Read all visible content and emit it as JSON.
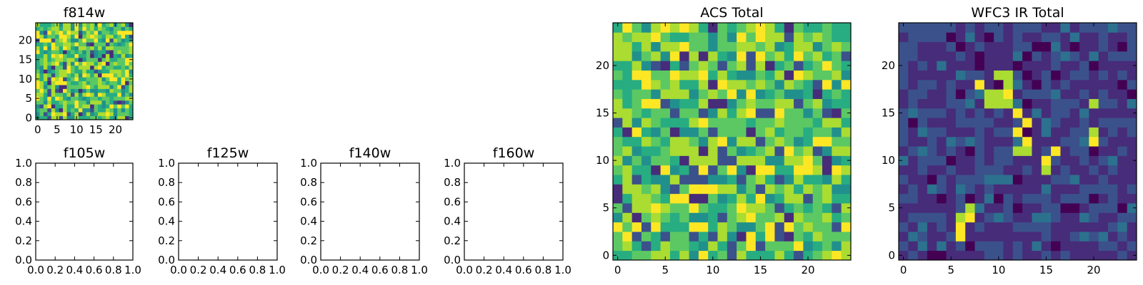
{
  "colormap": [
    "#440154",
    "#472c7a",
    "#3b518b",
    "#2c718e",
    "#21908d",
    "#27ad81",
    "#5cc863",
    "#aadc32",
    "#fde725"
  ],
  "chart_data": [
    {
      "type": "heatmap",
      "id": "f814w",
      "title": "f814w",
      "size": 25,
      "xticks": [
        "0",
        "5",
        "10",
        "15",
        "20"
      ],
      "yticks": [
        "0",
        "5",
        "10",
        "15",
        "20"
      ],
      "seed": 11,
      "mode": "noise"
    },
    {
      "type": "heatmap",
      "id": "f105w",
      "title": "f105w",
      "empty": true,
      "xticks": [
        "0.0",
        "0.2",
        "0.4",
        "0.6",
        "0.8",
        "1.0"
      ],
      "yticks": [
        "0.0",
        "0.2",
        "0.4",
        "0.6",
        "0.8",
        "1.0"
      ]
    },
    {
      "type": "heatmap",
      "id": "f125w",
      "title": "f125w",
      "empty": true,
      "xticks": [
        "0.0",
        "0.2",
        "0.4",
        "0.6",
        "0.8",
        "1.0"
      ],
      "yticks": [
        "0.0",
        "0.2",
        "0.4",
        "0.6",
        "0.8",
        "1.0"
      ]
    },
    {
      "type": "heatmap",
      "id": "f140w",
      "title": "f140w",
      "empty": true,
      "xticks": [
        "0.0",
        "0.2",
        "0.4",
        "0.6",
        "0.8",
        "1.0"
      ],
      "yticks": [
        "0.0",
        "0.2",
        "0.4",
        "0.6",
        "0.8",
        "1.0"
      ]
    },
    {
      "type": "heatmap",
      "id": "f160w",
      "title": "f160w",
      "empty": true,
      "xticks": [
        "0.0",
        "0.2",
        "0.4",
        "0.6",
        "0.8",
        "1.0"
      ],
      "yticks": [
        "0.0",
        "0.2",
        "0.4",
        "0.6",
        "0.8",
        "1.0"
      ]
    },
    {
      "type": "heatmap",
      "id": "acs",
      "title": "ACS Total",
      "size": 25,
      "xticks": [
        "0",
        "5",
        "10",
        "15",
        "20"
      ],
      "yticks": [
        "0",
        "5",
        "10",
        "15",
        "20"
      ],
      "seed": 23,
      "mode": "noise"
    },
    {
      "type": "heatmap",
      "id": "wfc3",
      "title": "WFC3 IR Total",
      "size": 25,
      "xticks": [
        "0",
        "5",
        "10",
        "15",
        "20"
      ],
      "yticks": [
        "0",
        "5",
        "10",
        "15",
        "20"
      ],
      "seed": 37,
      "mode": "sources",
      "bright_pixels": [
        [
          6,
          3
        ],
        [
          6,
          4
        ],
        [
          7,
          4
        ],
        [
          7,
          5
        ],
        [
          6,
          2
        ],
        [
          8,
          18
        ],
        [
          9,
          17
        ],
        [
          9,
          16
        ],
        [
          10,
          17
        ],
        [
          10,
          16
        ],
        [
          11,
          17
        ],
        [
          11,
          18
        ],
        [
          11,
          16
        ],
        [
          11,
          19
        ],
        [
          10,
          19
        ],
        [
          12,
          15
        ],
        [
          12,
          13
        ],
        [
          12,
          11
        ],
        [
          13,
          14
        ],
        [
          13,
          12
        ],
        [
          15,
          10
        ],
        [
          15,
          9
        ],
        [
          16,
          11
        ],
        [
          20,
          13
        ],
        [
          20,
          12
        ],
        [
          20,
          16
        ],
        [
          13,
          11
        ]
      ]
    }
  ]
}
